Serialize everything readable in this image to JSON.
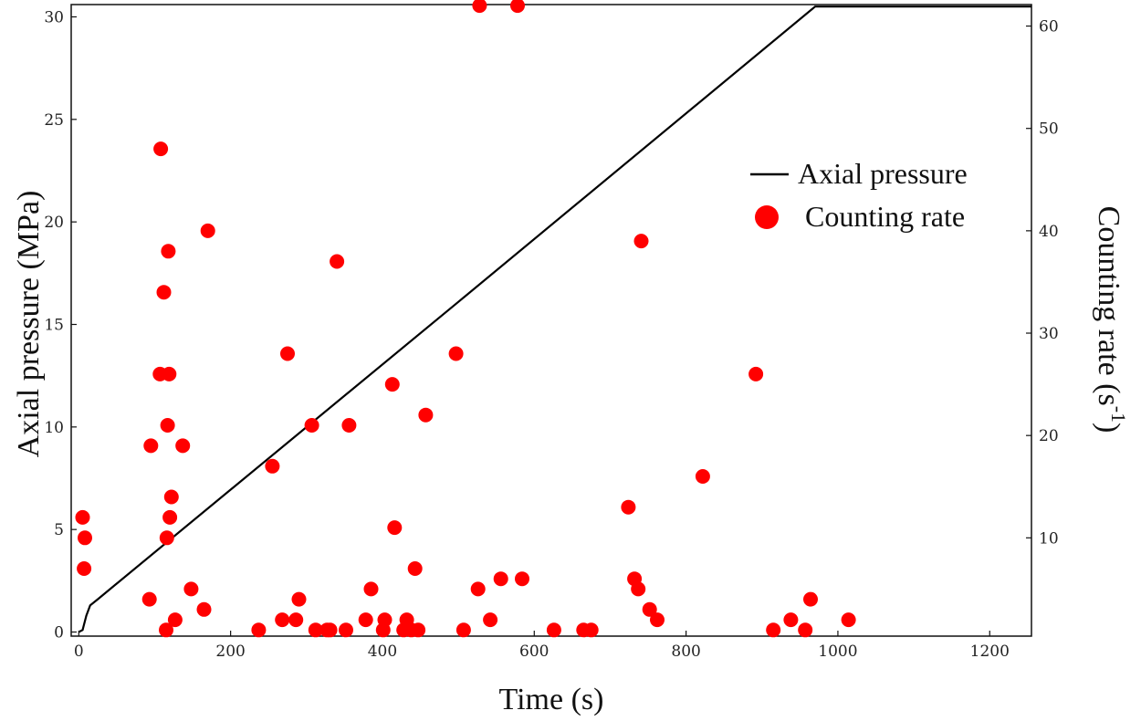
{
  "chart_data": {
    "type": "line+scatter",
    "xlabel": "Time (s)",
    "ylabel_left": "Axial pressure (MPa)",
    "ylabel_right_base": "Counting rate (s",
    "ylabel_right_exp": "-1",
    "ylabel_right_close": ")",
    "xlim": [
      -10,
      1255
    ],
    "ylim_left": [
      -0.2,
      30.6
    ],
    "ylim_right": [
      0.4,
      62.1
    ],
    "xticks": [
      0,
      200,
      400,
      600,
      800,
      1000,
      1200
    ],
    "yticks_left": [
      0,
      5,
      10,
      15,
      20,
      25,
      30
    ],
    "yticks_right": [
      10,
      20,
      30,
      40,
      50,
      60
    ],
    "colors": {
      "pressure_line": "#000000",
      "counting_points": "#ff0000"
    },
    "legend_position": "upper-right",
    "series": [
      {
        "name": "Axial pressure",
        "kind": "line",
        "points": [
          [
            0,
            0
          ],
          [
            5,
            0.1
          ],
          [
            10,
            0.8
          ],
          [
            15,
            1.3
          ],
          [
            25,
            1.6
          ],
          [
            500,
            16.1
          ],
          [
            970,
            30.5
          ],
          [
            1255,
            30.5
          ]
        ]
      },
      {
        "name": "Counting rate",
        "kind": "scatter",
        "axis": "right",
        "points": [
          [
            5,
            12
          ],
          [
            8,
            10
          ],
          [
            7,
            7
          ],
          [
            93,
            4
          ],
          [
            95,
            19
          ],
          [
            107,
            26
          ],
          [
            108,
            48
          ],
          [
            112,
            34
          ],
          [
            115,
            1
          ],
          [
            116,
            10
          ],
          [
            117,
            21
          ],
          [
            118,
            38
          ],
          [
            119,
            26
          ],
          [
            120,
            12
          ],
          [
            122,
            14
          ],
          [
            127,
            2
          ],
          [
            137,
            19
          ],
          [
            148,
            5
          ],
          [
            165,
            3
          ],
          [
            170,
            40
          ],
          [
            237,
            1
          ],
          [
            255,
            17
          ],
          [
            268,
            2
          ],
          [
            275,
            28
          ],
          [
            286,
            2
          ],
          [
            290,
            4
          ],
          [
            307,
            21
          ],
          [
            312,
            1
          ],
          [
            327,
            1
          ],
          [
            331,
            1
          ],
          [
            340,
            37
          ],
          [
            352,
            1
          ],
          [
            356,
            21
          ],
          [
            378,
            2
          ],
          [
            385,
            5
          ],
          [
            401,
            1
          ],
          [
            403,
            2
          ],
          [
            413,
            25
          ],
          [
            416,
            11
          ],
          [
            428,
            1
          ],
          [
            432,
            2
          ],
          [
            438,
            1
          ],
          [
            443,
            7
          ],
          [
            447,
            1
          ],
          [
            457,
            22
          ],
          [
            497,
            28
          ],
          [
            507,
            1
          ],
          [
            526,
            5
          ],
          [
            528,
            62
          ],
          [
            542,
            2
          ],
          [
            556,
            6
          ],
          [
            578,
            62
          ],
          [
            584,
            6
          ],
          [
            626,
            1
          ],
          [
            665,
            1
          ],
          [
            675,
            1
          ],
          [
            724,
            13
          ],
          [
            732,
            6
          ],
          [
            737,
            5
          ],
          [
            741,
            39
          ],
          [
            752,
            3
          ],
          [
            762,
            2
          ],
          [
            822,
            16
          ],
          [
            892,
            26
          ],
          [
            915,
            1
          ],
          [
            938,
            2
          ],
          [
            957,
            1
          ],
          [
            964,
            4
          ],
          [
            1014,
            2
          ]
        ]
      }
    ]
  }
}
